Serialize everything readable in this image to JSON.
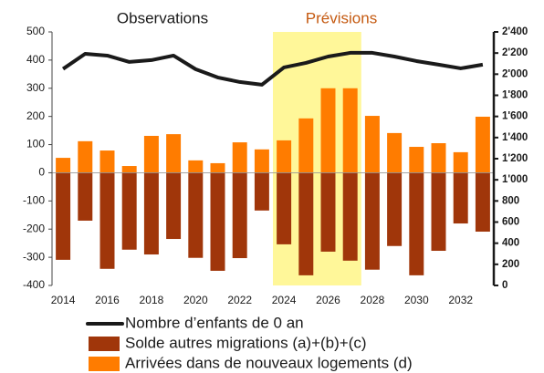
{
  "chart_data": {
    "type": "bar",
    "annotations": [
      {
        "text": "Observations",
        "color": "#1a1a1a"
      },
      {
        "text": "Prévisions",
        "color": "#c55a11"
      }
    ],
    "shade": [
      2023.5,
      2027.5
    ],
    "shade_color": "#fff799",
    "x": [
      2014,
      2015,
      2016,
      2017,
      2018,
      2019,
      2020,
      2021,
      2022,
      2023,
      2024,
      2025,
      2026,
      2027,
      2028,
      2029,
      2030,
      2031,
      2032,
      2033
    ],
    "xlim": [
      2013.5,
      2033.5
    ],
    "xticks": [
      2014,
      2016,
      2018,
      2020,
      2022,
      2024,
      2026,
      2028,
      2030,
      2032
    ],
    "ylim": [
      -400,
      500
    ],
    "yticks": [
      -400,
      -300,
      -200,
      -100,
      0,
      100,
      200,
      300,
      400,
      500
    ],
    "y2lim": [
      0,
      2400
    ],
    "y2ticks": [
      0,
      200,
      400,
      600,
      800,
      {
        "value": 1000,
        "label": "1'000"
      },
      {
        "value": 1200,
        "label": "1'200"
      },
      {
        "value": 1400,
        "label": "1'400"
      },
      {
        "value": 1600,
        "label": "1'600"
      },
      {
        "value": 1800,
        "label": "1'800"
      },
      {
        "value": 2000,
        "label": "2'000"
      },
      {
        "value": 2200,
        "label": "2'200"
      },
      {
        "value": 2400,
        "label": "2'400"
      }
    ],
    "series": [
      {
        "name": "Nombre d’enfants de 0 an",
        "type": "line",
        "axis": "y2",
        "color": "#1a1a1a",
        "values": [
          2050,
          2193,
          2176,
          2116,
          2133,
          2176,
          2047,
          1969,
          1926,
          1900,
          2064,
          2107,
          2167,
          2202,
          2202,
          2167,
          2124,
          2090,
          2055,
          2090
        ]
      },
      {
        "name": "Solde autres migrations (a)+(b)+(c)",
        "type": "bar",
        "color": "#a0360a",
        "values": [
          -309,
          -170,
          -341,
          -273,
          -290,
          -235,
          -302,
          -348,
          -303,
          -134,
          -254,
          -364,
          -280,
          -312,
          -344,
          -260,
          -364,
          -277,
          -180,
          -209
        ]
      },
      {
        "name": "Arrivées dans de nouveaux logements (d)",
        "type": "bar",
        "color": "#ff7c00",
        "values": [
          53,
          112,
          79,
          24,
          131,
          137,
          44,
          34,
          108,
          83,
          115,
          193,
          300,
          300,
          202,
          141,
          92,
          105,
          73,
          199
        ]
      }
    ]
  }
}
